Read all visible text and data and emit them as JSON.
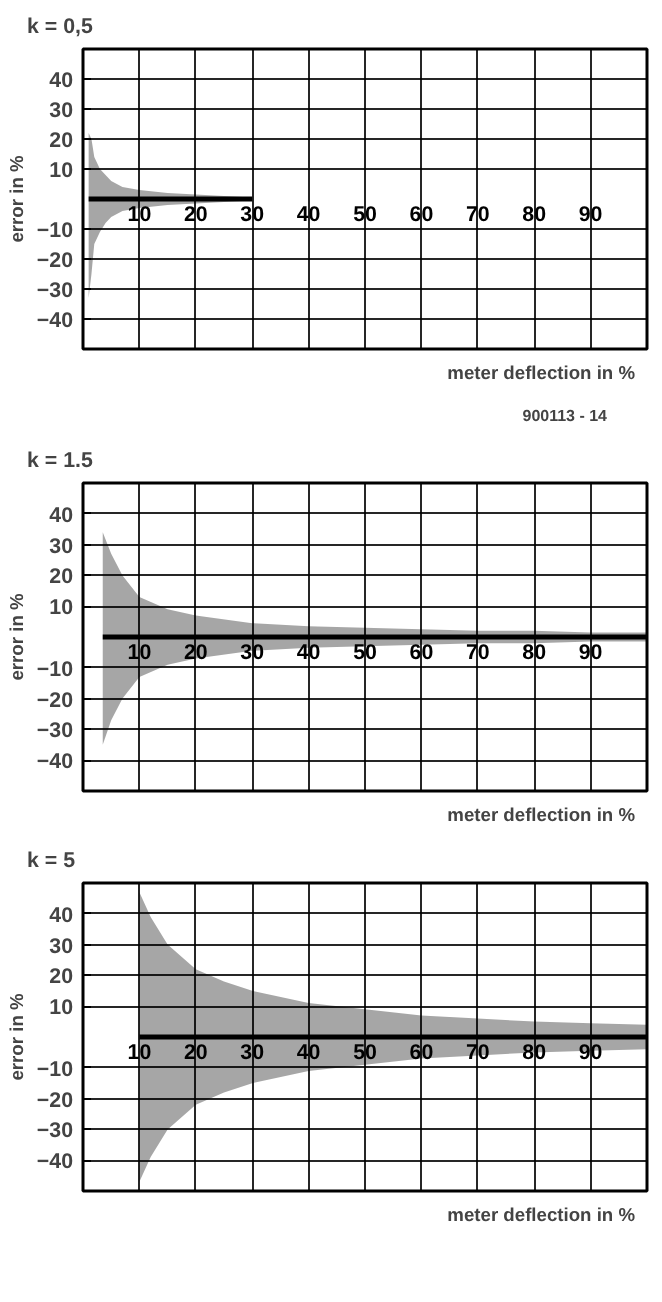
{
  "chart_data": [
    {
      "type": "line",
      "title": "k = 0,5",
      "ylabel": "error in %",
      "xlabel": "meter deflection in %",
      "annotations": [
        "900113 - 14"
      ],
      "xlim": [
        0,
        100
      ],
      "ylim": [
        -50,
        50
      ],
      "xticks": [
        10,
        20,
        30,
        40,
        50,
        60,
        70,
        80,
        90
      ],
      "yticks": [
        -40,
        -30,
        -20,
        -10,
        10,
        20,
        30,
        40
      ],
      "grid": true,
      "series": [
        {
          "color": "#000000",
          "x": [
            1,
            1.5,
            2,
            3,
            4,
            5,
            7,
            10,
            15,
            20,
            25,
            30
          ],
          "values": [
            0,
            0,
            0,
            0,
            0,
            0,
            0,
            0,
            0,
            0,
            0,
            0
          ],
          "upper": [
            22,
            20,
            14,
            10,
            8,
            6,
            4,
            3,
            2,
            1.5,
            1,
            0.5
          ],
          "lower": [
            -33,
            -25,
            -15,
            -11,
            -8,
            -6,
            -4,
            -3,
            -2,
            -1.5,
            -1,
            -0.5
          ]
        }
      ]
    },
    {
      "type": "line",
      "title": "k = 1.5",
      "ylabel": "error in %",
      "xlabel": "meter deflection in %",
      "xlim": [
        0,
        100
      ],
      "ylim": [
        -50,
        50
      ],
      "xticks": [
        10,
        20,
        30,
        40,
        50,
        60,
        70,
        80,
        90
      ],
      "yticks": [
        -40,
        -30,
        -20,
        -10,
        10,
        20,
        30,
        40
      ],
      "grid": true,
      "series": [
        {
          "color": "#000000",
          "x": [
            3.5,
            5,
            7,
            10,
            15,
            20,
            30,
            40,
            50,
            60,
            70,
            80,
            90,
            100
          ],
          "values": [
            0,
            0,
            0,
            0,
            0,
            0,
            0,
            0,
            0,
            0,
            0,
            0,
            0,
            0
          ],
          "upper": [
            34,
            27,
            20,
            13,
            9,
            7,
            4.5,
            3.5,
            3,
            2.5,
            2,
            2,
            1.5,
            1.5
          ],
          "lower": [
            -35,
            -27,
            -20,
            -13,
            -9,
            -7,
            -4.5,
            -3.5,
            -3,
            -2.5,
            -2,
            -2,
            -1.5,
            -1.5
          ]
        }
      ]
    },
    {
      "type": "line",
      "title": "k = 5",
      "ylabel": "error in %",
      "xlabel": "meter deflection in %",
      "xlim": [
        0,
        100
      ],
      "ylim": [
        -50,
        50
      ],
      "xticks": [
        10,
        20,
        30,
        40,
        50,
        60,
        70,
        80,
        90
      ],
      "yticks": [
        -40,
        -30,
        -20,
        -10,
        10,
        20,
        30,
        40
      ],
      "grid": true,
      "series": [
        {
          "color": "#000000",
          "x": [
            10,
            12,
            15,
            20,
            25,
            30,
            40,
            50,
            60,
            70,
            80,
            90,
            100
          ],
          "values": [
            0,
            0,
            0,
            0,
            0,
            0,
            0,
            0,
            0,
            0,
            0,
            0,
            0
          ],
          "upper": [
            47,
            39,
            30,
            22,
            18,
            15,
            11,
            9,
            7,
            6,
            5,
            4.5,
            4
          ],
          "lower": [
            -47,
            -39,
            -30,
            -22,
            -18,
            -15,
            -11,
            -9,
            -7,
            -6,
            -5,
            -4.5,
            -4
          ]
        }
      ]
    }
  ]
}
